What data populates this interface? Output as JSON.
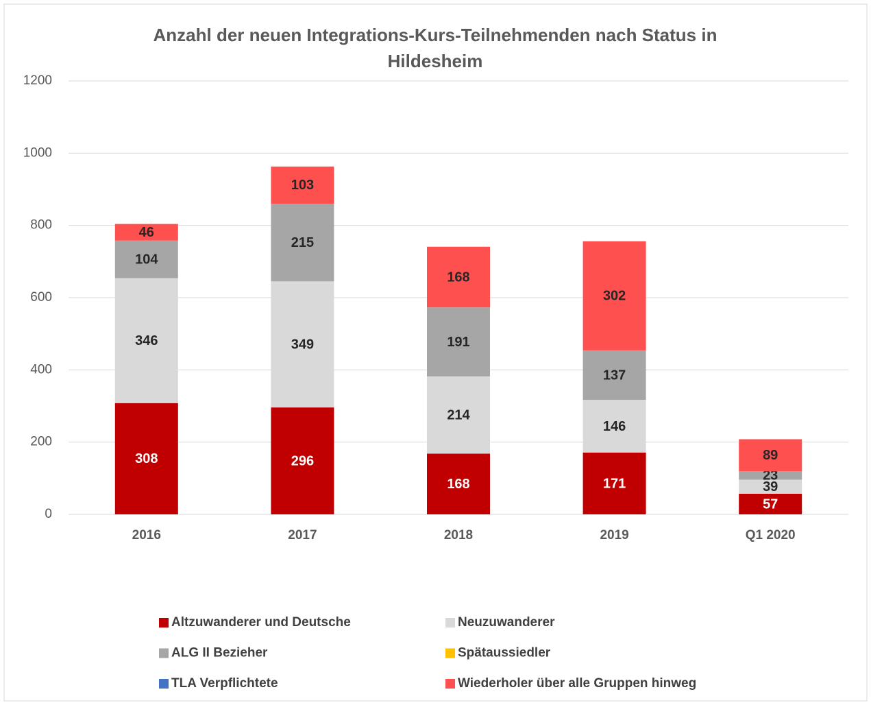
{
  "chart_data": {
    "type": "stacked_bar",
    "title": "Anzahl der neuen Integrations-Kurs-Teilnehmenden nach Status in Hildesheim",
    "categories": [
      "2016",
      "2017",
      "2018",
      "2019",
      "Q1 2020"
    ],
    "series": [
      {
        "name": "Altzuwanderer und Deutsche",
        "color": "#c00000",
        "label_color": "#ffffff",
        "values": [
          308,
          296,
          168,
          171,
          57
        ]
      },
      {
        "name": "Neuzuwanderer",
        "color": "#d9d9d9",
        "label_color": "#262626",
        "values": [
          346,
          349,
          214,
          146,
          39
        ]
      },
      {
        "name": "ALG II Bezieher",
        "color": "#a6a6a6",
        "label_color": "#262626",
        "values": [
          104,
          215,
          191,
          137,
          23
        ]
      },
      {
        "name": "Spätaussiedler",
        "color": "#ffc000",
        "label_color": "#262626",
        "values": [
          0,
          0,
          0,
          0,
          0
        ]
      },
      {
        "name": "TLA Verpflichtete",
        "color": "#4472c4",
        "label_color": "#262626",
        "values": [
          0,
          0,
          0,
          0,
          0
        ]
      },
      {
        "name": "Wiederholer über alle Gruppen hinweg",
        "color": "#ff5050",
        "label_color": "#262626",
        "values": [
          46,
          103,
          168,
          302,
          89
        ]
      }
    ],
    "ylim": [
      0,
      1200
    ],
    "yticks": [
      0,
      200,
      400,
      600,
      800,
      1000,
      1200
    ],
    "grid": true
  }
}
